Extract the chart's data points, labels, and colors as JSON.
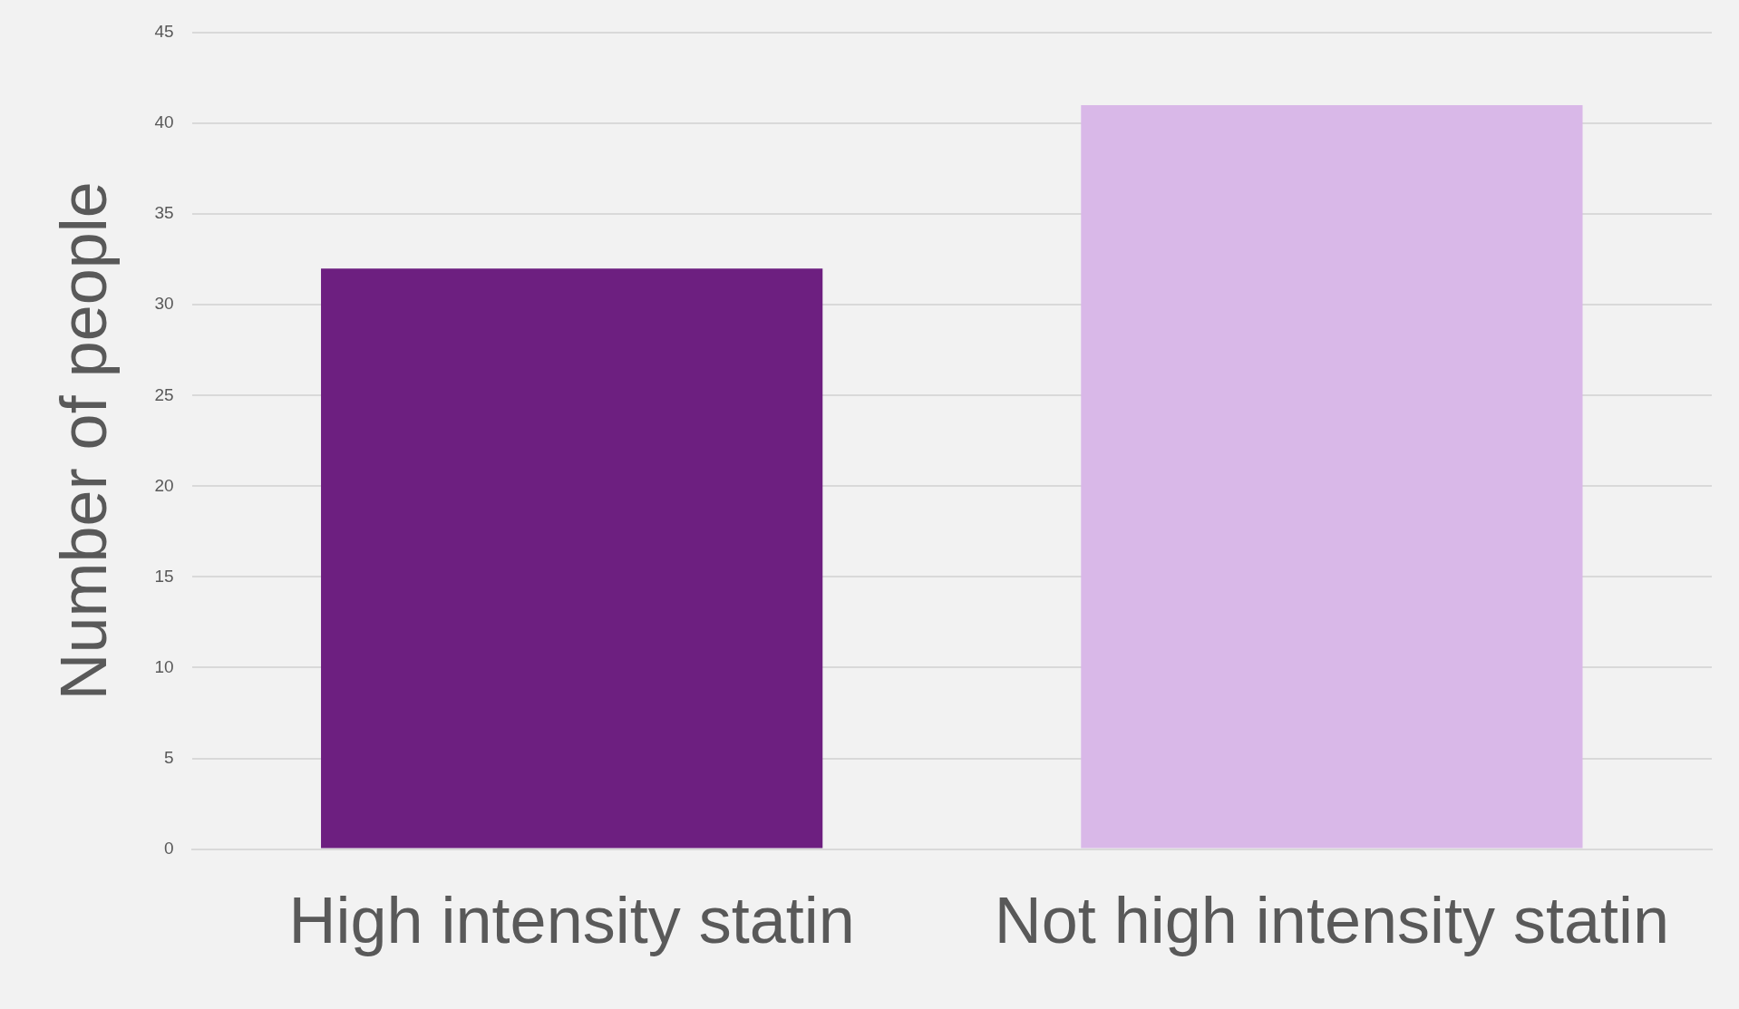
{
  "chart_data": {
    "type": "bar",
    "ylabel": "Number of people",
    "categories": [
      "High intensity statin",
      "Not high intensity statin"
    ],
    "values": [
      32,
      41
    ],
    "colors": [
      "#6d1f80",
      "#d9b8e8"
    ],
    "ylim": [
      0,
      45
    ],
    "yticks": [
      0,
      5,
      10,
      15,
      20,
      25,
      30,
      35,
      40,
      45
    ],
    "grid": "y",
    "legend": false
  }
}
